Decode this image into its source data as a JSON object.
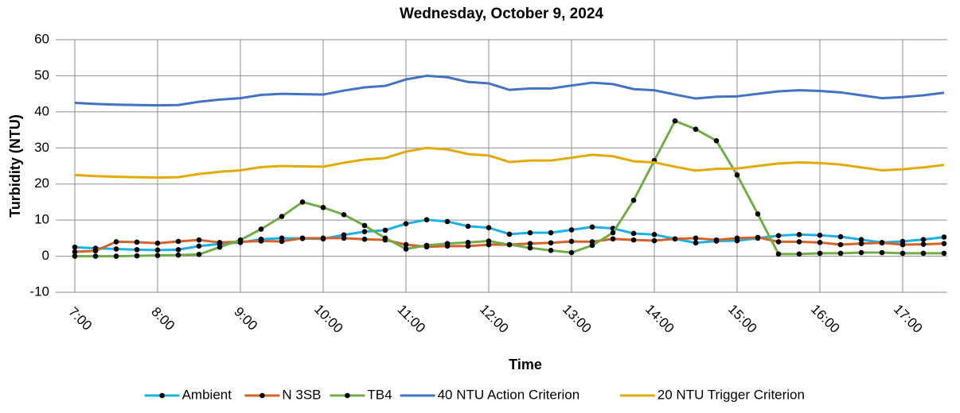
{
  "chart_data": {
    "type": "line",
    "title": "Wednesday, October 9, 2024",
    "xlabel": "Time",
    "ylabel": "Turbidity (NTU)",
    "categories": [
      "7:00",
      null,
      null,
      null,
      "8:00",
      null,
      null,
      null,
      "9:00",
      null,
      null,
      null,
      "10:00",
      null,
      null,
      null,
      "11:00",
      null,
      null,
      null,
      "12:00",
      null,
      null,
      null,
      "13:00",
      null,
      null,
      null,
      "14:00",
      null,
      null,
      null,
      "15:00",
      null,
      null,
      null,
      "16:00",
      null,
      null,
      null,
      "17:00",
      null,
      null
    ],
    "ylim": [
      -10,
      60
    ],
    "yticks": [
      -10,
      0,
      10,
      20,
      30,
      40,
      50,
      60
    ],
    "grid": true,
    "legend": "bottom",
    "series": [
      {
        "name": "Ambient",
        "color": "#1ab0e8",
        "markers": true,
        "values": [
          2.5,
          2.2,
          2,
          1.8,
          1.7,
          1.8,
          2.8,
          3.4,
          3.8,
          4.7,
          5,
          4.9,
          4.8,
          5.9,
          6.8,
          7.2,
          9,
          10.1,
          9.6,
          8.3,
          7.9,
          6.1,
          6.5,
          6.5,
          7.3,
          8.1,
          7.7,
          6.3,
          6,
          4.8,
          3.7,
          4.2,
          4.3,
          5,
          5.7,
          6,
          5.8,
          5.4,
          4.6,
          3.8,
          4.1,
          4.6,
          5.3
        ]
      },
      {
        "name": "N 3SB",
        "color": "#d4622a",
        "markers": true,
        "values": [
          1.2,
          1.5,
          4,
          3.9,
          3.6,
          4.1,
          4.5,
          3.8,
          4,
          4.2,
          4.1,
          5,
          5,
          5,
          4.7,
          4.5,
          3.2,
          2.6,
          2.8,
          2.8,
          3.2,
          3.2,
          3.5,
          3.7,
          4.1,
          4,
          4.8,
          4.5,
          4.3,
          4.8,
          5,
          4.5,
          5,
          5.2,
          4,
          4,
          3.8,
          3.2,
          3.5,
          3.7,
          3.2,
          3.3,
          3.5
        ]
      },
      {
        "name": "TB4",
        "color": "#70ad47",
        "markers": true,
        "values": [
          0,
          0,
          0,
          0.1,
          0.2,
          0.3,
          0.5,
          2.5,
          4.5,
          7.5,
          11,
          15,
          13.5,
          11.5,
          8.5,
          5,
          2,
          3,
          3.5,
          3.8,
          4.2,
          3.2,
          2.3,
          1.6,
          1,
          3,
          6.5,
          15.5,
          26.5,
          37.5,
          35.2,
          32,
          22.5,
          11.7,
          0.6,
          0.6,
          0.8,
          0.8,
          1,
          1,
          0.8,
          0.8,
          0.8
        ]
      },
      {
        "name": "40 NTU Action Criterion",
        "color": "#4472c4",
        "markers": false,
        "values": [
          42.5,
          42.2,
          42,
          41.9,
          41.8,
          41.9,
          42.8,
          43.4,
          43.8,
          44.7,
          45,
          44.9,
          44.8,
          45.9,
          46.8,
          47.2,
          49,
          50,
          49.6,
          48.3,
          47.9,
          46.1,
          46.5,
          46.5,
          47.3,
          48.1,
          47.7,
          46.3,
          46,
          44.8,
          43.7,
          44.2,
          44.3,
          45,
          45.7,
          46,
          45.8,
          45.4,
          44.6,
          43.8,
          44.1,
          44.6,
          45.3
        ]
      },
      {
        "name": "20 NTU Trigger Criterion",
        "color": "#e2aa00",
        "markers": false,
        "values": [
          22.5,
          22.2,
          22,
          21.9,
          21.8,
          21.9,
          22.8,
          23.4,
          23.8,
          24.7,
          25,
          24.9,
          24.8,
          25.9,
          26.8,
          27.2,
          29,
          30,
          29.6,
          28.3,
          27.9,
          26.1,
          26.5,
          26.5,
          27.3,
          28.1,
          27.7,
          26.3,
          26,
          24.8,
          23.7,
          24.2,
          24.3,
          25,
          25.7,
          26,
          25.8,
          25.4,
          24.6,
          23.8,
          24.1,
          24.6,
          25.3
        ]
      }
    ]
  }
}
